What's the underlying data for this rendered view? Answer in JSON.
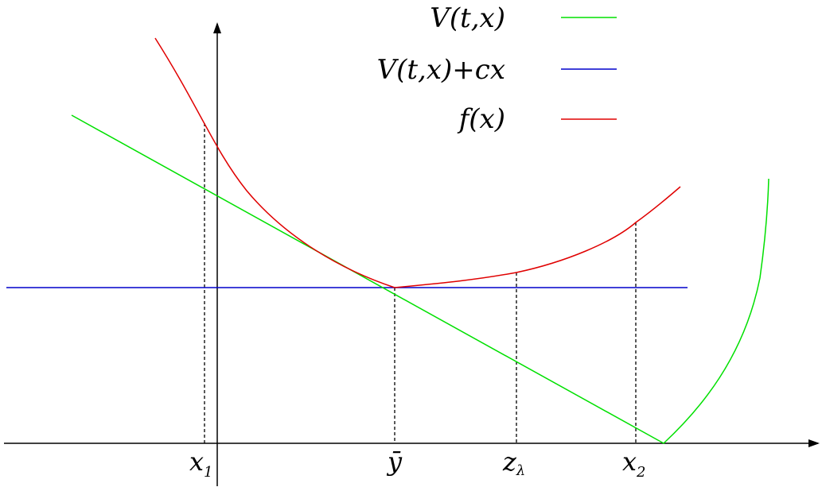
{
  "legend": {
    "items": [
      {
        "label": "V(t,x)",
        "color": "#00e000"
      },
      {
        "label": "V(t,x)+cx",
        "color": "#0000cc"
      },
      {
        "label": "f(x)",
        "color": "#e00000"
      }
    ]
  },
  "markers": {
    "x1": {
      "base": "x",
      "sub": "1"
    },
    "ybar": {
      "base": "ȳ"
    },
    "zlambda": {
      "base": "z",
      "sub": "λ"
    },
    "x2": {
      "base": "x",
      "sub": "2"
    }
  },
  "colors": {
    "axis": "#000000",
    "v_curve": "#00e000",
    "v_plus_cx": "#0000cc",
    "f_curve": "#e00000"
  }
}
